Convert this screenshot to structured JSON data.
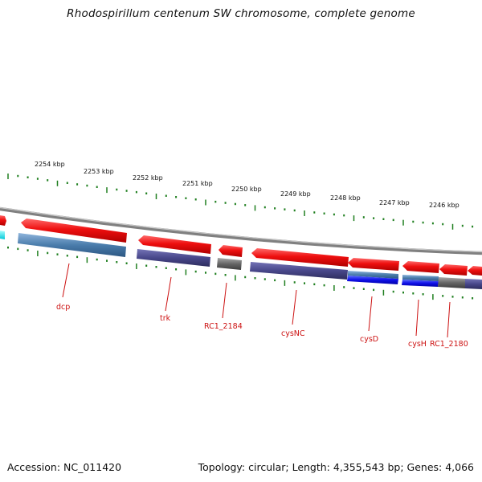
{
  "title": "Rhodospirillum centenum SW chromosome, complete genome",
  "footer": {
    "accession": "Accession: NC_011420",
    "stats": "Topology: circular; Length: 4,355,543 bp; Genes: 4,066"
  },
  "colors": {
    "forward_gene": "#ee1111",
    "cds_product": "#4b4a8c",
    "rna_gene": "#4f7fae",
    "pseudo": "#6f6f6f",
    "tick": "#1f7f1f",
    "label": "#cc1111"
  },
  "ruler": {
    "unit": "kbp",
    "labels": [
      "2254 kbp",
      "2253 kbp",
      "2252 kbp",
      "2251 kbp",
      "2250 kbp",
      "2249 kbp",
      "2248 kbp",
      "2247 kbp",
      "2246 kbp"
    ]
  },
  "genes": [
    {
      "name": "dcp"
    },
    {
      "name": "trk"
    },
    {
      "name": "RC1_2184"
    },
    {
      "name": "cysNC"
    },
    {
      "name": "cysD"
    },
    {
      "name": "cysH"
    },
    {
      "name": "RC1_2180"
    }
  ]
}
